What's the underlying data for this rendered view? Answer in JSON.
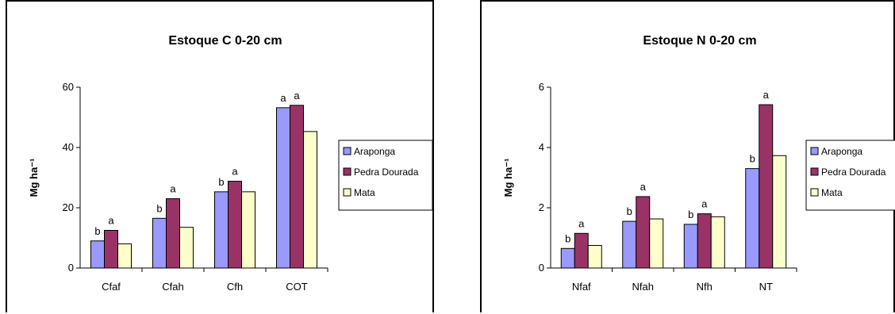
{
  "colors": {
    "Araponga": "#9999ff",
    "Pedra Dourada": "#993366",
    "Mata": "#ffffcc"
  },
  "chart_data": [
    {
      "type": "bar",
      "title": "Estoque C 0-20 cm",
      "ylabel": "Mg ha⁻¹",
      "ylim": [
        0,
        60
      ],
      "yticks": [
        "0",
        "20",
        "40",
        "60"
      ],
      "categories": [
        "Cfaf",
        "Cfah",
        "Cfh",
        "COT"
      ],
      "series": [
        {
          "name": "Araponga",
          "values": [
            9,
            16.5,
            25.3,
            53.2
          ]
        },
        {
          "name": "Pedra Dourada",
          "values": [
            12.5,
            23,
            28.8,
            54
          ]
        },
        {
          "name": "Mata",
          "values": [
            8,
            13.5,
            25.3,
            45.3
          ]
        }
      ],
      "annotations": [
        [
          "b",
          "a",
          ""
        ],
        [
          "b",
          "a",
          ""
        ],
        [
          "b",
          "a",
          ""
        ],
        [
          "a",
          "a",
          ""
        ]
      ],
      "legend": "right",
      "grid": false
    },
    {
      "type": "bar",
      "title": "Estoque N 0-20 cm",
      "ylabel": "Mg ha⁻¹",
      "ylim": [
        0,
        6
      ],
      "yticks": [
        "0",
        "2",
        "4",
        "6"
      ],
      "categories": [
        "Nfaf",
        "Nfah",
        "Nfh",
        "NT"
      ],
      "series": [
        {
          "name": "Araponga",
          "values": [
            0.65,
            1.55,
            1.45,
            3.3
          ]
        },
        {
          "name": "Pedra Dourada",
          "values": [
            1.15,
            2.37,
            1.8,
            5.42
          ]
        },
        {
          "name": "Mata",
          "values": [
            0.75,
            1.63,
            1.7,
            3.73
          ]
        }
      ],
      "annotations": [
        [
          "b",
          "a",
          ""
        ],
        [
          "b",
          "a",
          ""
        ],
        [
          "b",
          "a",
          ""
        ],
        [
          "b",
          "a",
          ""
        ]
      ],
      "legend": "right",
      "grid": false
    }
  ]
}
